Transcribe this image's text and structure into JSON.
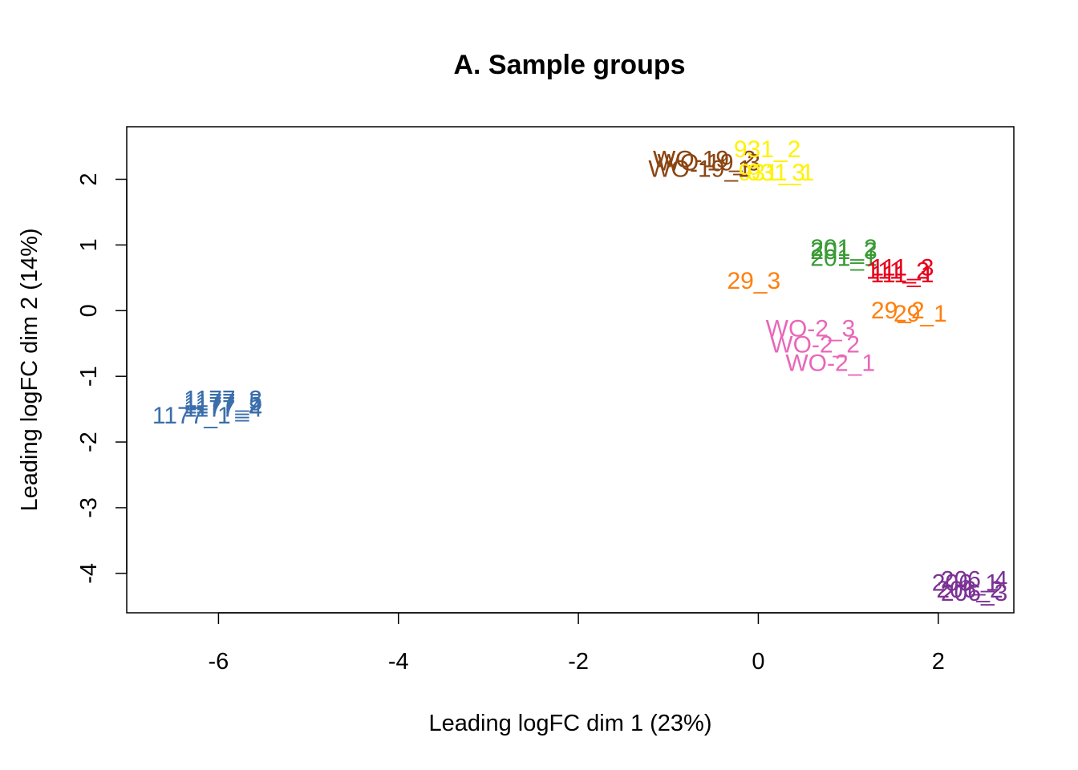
{
  "chart_data": {
    "type": "scatter",
    "title": "A. Sample groups",
    "xlabel": "Leading logFC dim 1 (23%)",
    "ylabel": "Leading logFC dim 2 (14%)",
    "xlim": [
      -7.02,
      2.84
    ],
    "ylim": [
      -4.6,
      2.8
    ],
    "xticks": [
      -6,
      -4,
      -2,
      0,
      2
    ],
    "yticks": [
      -4,
      -3,
      -2,
      -1,
      0,
      1,
      2
    ],
    "xtick_labels": [
      "-6",
      "-4",
      "-2",
      "0",
      "2"
    ],
    "ytick_labels": [
      "-4",
      "-3",
      "-2",
      "-1",
      "0",
      "1",
      "2"
    ],
    "grid": false,
    "legend": "none",
    "points": [
      {
        "label": "1177_1",
        "x": -6.3,
        "y": -1.6,
        "group": "1177",
        "color": "#3A6EAB"
      },
      {
        "label": "1177_2",
        "x": -5.95,
        "y": -1.45,
        "group": "1177",
        "color": "#3A6EAB"
      },
      {
        "label": "1177_3",
        "x": -5.95,
        "y": -1.35,
        "group": "1177",
        "color": "#3A6EAB"
      },
      {
        "label": "1177_4",
        "x": -5.95,
        "y": -1.5,
        "group": "1177",
        "color": "#3A6EAB"
      },
      {
        "label": "1177_5",
        "x": -5.95,
        "y": -1.4,
        "group": "1177",
        "color": "#3A6EAB"
      },
      {
        "label": "WO-19_1",
        "x": -0.65,
        "y": 2.15,
        "group": "WO-19",
        "color": "#8B4513"
      },
      {
        "label": "WO-19_2",
        "x": -0.6,
        "y": 2.3,
        "group": "WO-19",
        "color": "#8B4513"
      },
      {
        "label": "WO-19_3",
        "x": -0.55,
        "y": 2.25,
        "group": "WO-19",
        "color": "#8B4513"
      },
      {
        "label": "931_1",
        "x": 0.25,
        "y": 2.1,
        "group": "931",
        "color": "#FFF200"
      },
      {
        "label": "931_2",
        "x": 0.1,
        "y": 2.45,
        "group": "931",
        "color": "#FFF200"
      },
      {
        "label": "931_3",
        "x": 0.15,
        "y": 2.1,
        "group": "931",
        "color": "#FFF200"
      },
      {
        "label": "201_1",
        "x": 0.95,
        "y": 0.8,
        "group": "201",
        "color": "#3A9B35"
      },
      {
        "label": "201_2",
        "x": 0.95,
        "y": 0.95,
        "group": "201",
        "color": "#3A9B35"
      },
      {
        "label": "201_3",
        "x": 0.95,
        "y": 0.9,
        "group": "201",
        "color": "#3A9B35"
      },
      {
        "label": "111_1",
        "x": 1.6,
        "y": 0.55,
        "group": "111",
        "color": "#E8001C"
      },
      {
        "label": "111_2",
        "x": 1.55,
        "y": 0.6,
        "group": "111",
        "color": "#E8001C"
      },
      {
        "label": "111_3",
        "x": 1.6,
        "y": 0.65,
        "group": "111",
        "color": "#E8001C"
      },
      {
        "label": "29_1",
        "x": 1.8,
        "y": -0.05,
        "group": "29",
        "color": "#FF7F0E"
      },
      {
        "label": "29_2",
        "x": 1.55,
        "y": 0.0,
        "group": "29",
        "color": "#FF7F0E"
      },
      {
        "label": "29_3",
        "x": -0.05,
        "y": 0.45,
        "group": "29",
        "color": "#FF7F0E"
      },
      {
        "label": "WO-2_1",
        "x": 0.8,
        "y": -0.8,
        "group": "WO-2",
        "color": "#E967B8"
      },
      {
        "label": "WO-2_2",
        "x": 0.63,
        "y": -0.52,
        "group": "WO-2",
        "color": "#E967B8"
      },
      {
        "label": "WO-2_3",
        "x": 0.58,
        "y": -0.28,
        "group": "WO-2",
        "color": "#E967B8"
      },
      {
        "label": "206_1",
        "x": 2.3,
        "y": -4.15,
        "group": "206",
        "color": "#7B3294"
      },
      {
        "label": "206_2",
        "x": 2.35,
        "y": -4.25,
        "group": "206",
        "color": "#7B3294"
      },
      {
        "label": "206_3",
        "x": 2.4,
        "y": -4.3,
        "group": "206",
        "color": "#7B3294"
      },
      {
        "label": "206_4",
        "x": 2.4,
        "y": -4.1,
        "group": "206",
        "color": "#7B3294"
      }
    ]
  }
}
